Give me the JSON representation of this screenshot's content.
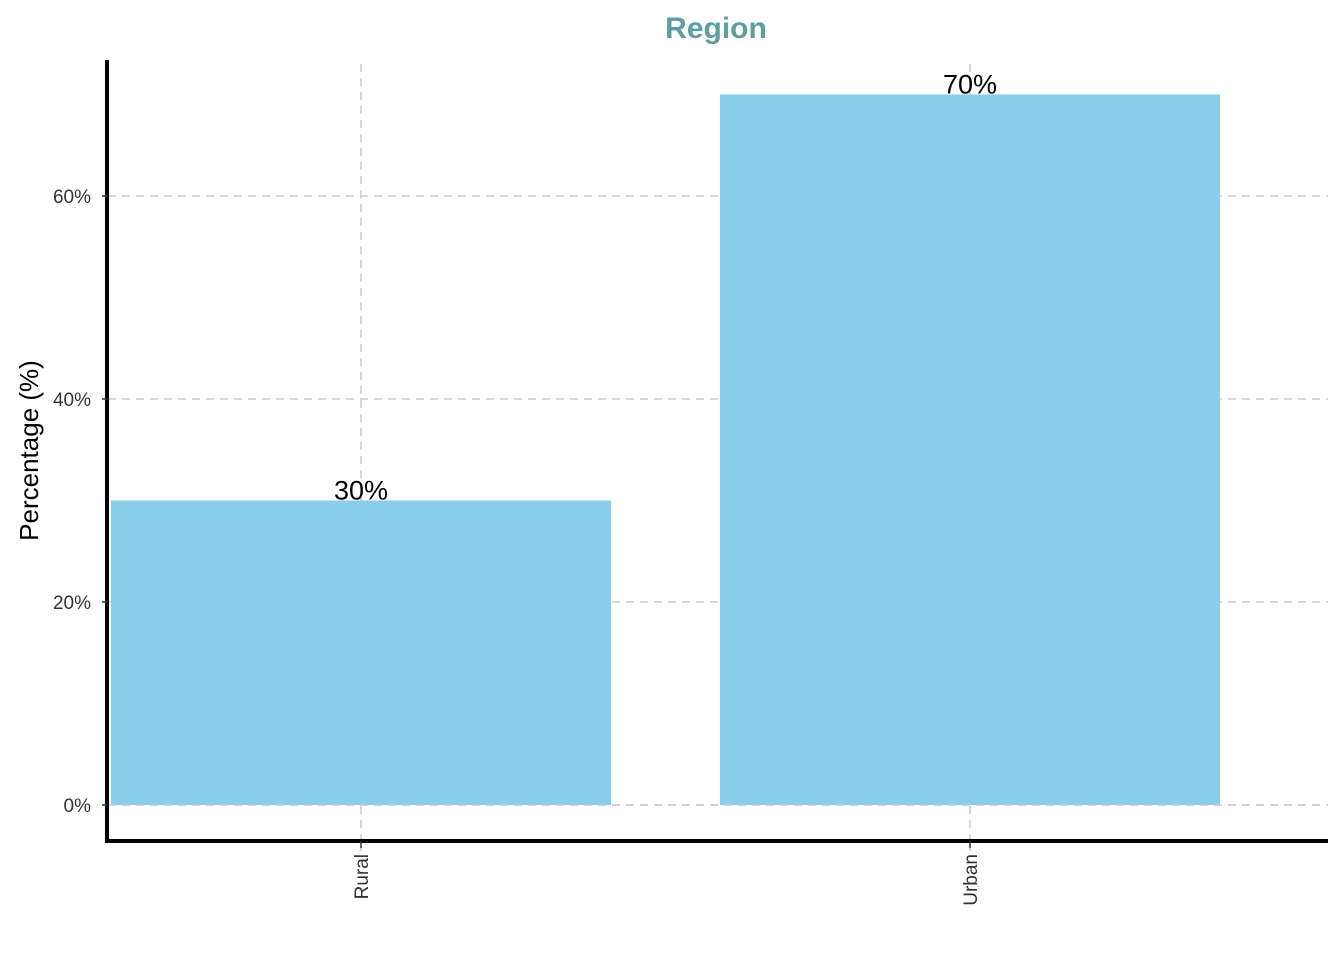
{
  "chart_data": {
    "type": "bar",
    "title": "Region",
    "xlabel": "",
    "ylabel": "Percentage (%)",
    "categories": [
      "Rural",
      "Urban"
    ],
    "values": [
      30,
      70
    ],
    "data_labels": [
      "30%",
      "70%"
    ],
    "ylim": [
      0,
      72
    ],
    "yticks": [
      0,
      20,
      40,
      60
    ],
    "ytick_labels": [
      "0%",
      "20%",
      "40%",
      "60%"
    ],
    "grid": true,
    "legend": "none",
    "colors": {
      "bar": "#87CEEB",
      "title": "#5F9EA0",
      "grid": "#cccccc",
      "axis": "#000000"
    }
  }
}
